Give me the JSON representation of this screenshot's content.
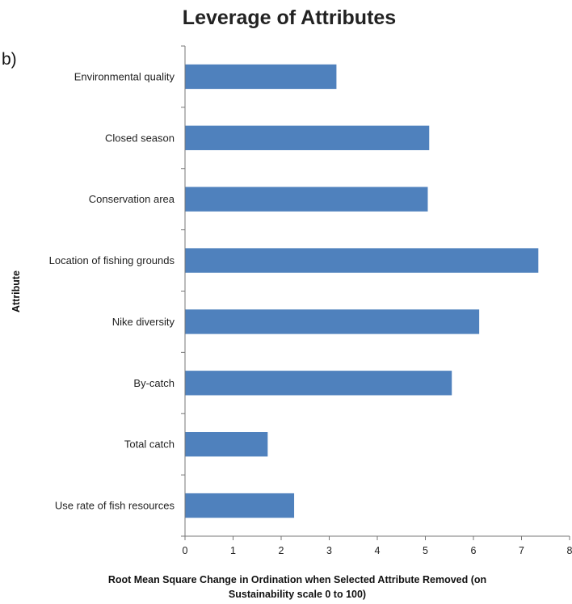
{
  "panel_letter": "b)",
  "chart_data": {
    "type": "bar",
    "orientation": "horizontal",
    "title": "Leverage of Attributes",
    "ylabel": "Attribute",
    "xlabel_lines": [
      "Root Mean Square Change in Ordination when Selected Attribute Removed (on",
      "Sustainability scale 0 to 100)"
    ],
    "categories": [
      "Environmental quality",
      "Closed season",
      "Conservation area",
      "Location of fishing grounds",
      "Nike diversity",
      "By-catch",
      "Total catch",
      "Use rate of fish resources"
    ],
    "values": [
      3.15,
      5.08,
      5.05,
      7.35,
      6.12,
      5.55,
      1.72,
      2.27
    ],
    "xlim": [
      0,
      8
    ],
    "xticks": [
      "0",
      "1",
      "2",
      "3",
      "4",
      "5",
      "6",
      "7",
      "8"
    ],
    "bar_color": "#4f81bd",
    "grid": false,
    "legend": "none"
  }
}
